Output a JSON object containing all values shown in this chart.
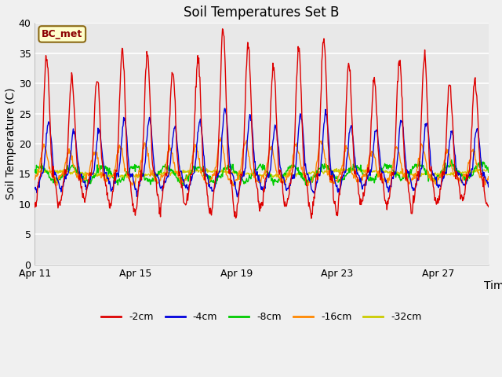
{
  "title": "Soil Temperatures Set B",
  "xlabel": "Time",
  "ylabel": "Soil Temperature (C)",
  "annotation": "BC_met",
  "ylim": [
    0,
    40
  ],
  "yticks": [
    0,
    5,
    10,
    15,
    20,
    25,
    30,
    35,
    40
  ],
  "x_tick_labels": [
    "Apr 11",
    "Apr 15",
    "Apr 19",
    "Apr 23",
    "Apr 27"
  ],
  "x_tick_positions": [
    0,
    4,
    8,
    12,
    16
  ],
  "legend_labels": [
    "-2cm",
    "-4cm",
    "-8cm",
    "-16cm",
    "-32cm"
  ],
  "line_colors": [
    "#dd0000",
    "#0000dd",
    "#00cc00",
    "#ff8800",
    "#cccc00"
  ],
  "plot_bg_color": "#e8e8e8",
  "title_fontsize": 12,
  "axis_fontsize": 10,
  "n_days": 18
}
